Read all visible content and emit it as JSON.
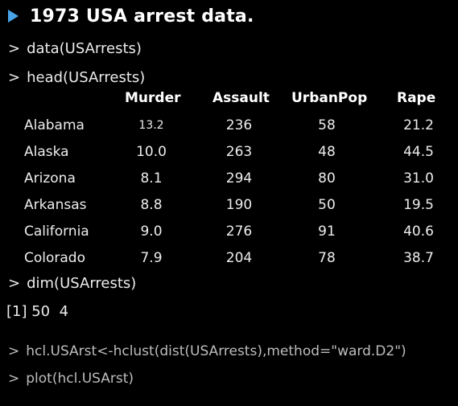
{
  "slide": {
    "title": "1973 USA arrest data.",
    "bullet_icon": "triangle-bullet-icon",
    "accent_color": "#4aa3e8"
  },
  "console": {
    "prompt": ">",
    "cmd1": "data(USArrests)",
    "cmd2": "head(USArrests)",
    "cmd3": "dim(USArrests)",
    "dim_output": "[1] 50  4",
    "cmd4": "hcl.USArst<-hclust(dist(USArrests),method=\"ward.D2\")",
    "cmd5": "plot(hcl.USArst)"
  },
  "table": {
    "columns": [
      "Murder",
      "Assault",
      "UrbanPop",
      "Rape"
    ],
    "rows": [
      {
        "state": "Alabama",
        "values": [
          "13.2",
          "236",
          "58",
          "21.2"
        ]
      },
      {
        "state": "Alaska",
        "values": [
          "10.0",
          "263",
          "48",
          "44.5"
        ]
      },
      {
        "state": "Arizona",
        "values": [
          "8.1",
          "294",
          "80",
          "31.0"
        ]
      },
      {
        "state": "Arkansas",
        "values": [
          "8.8",
          "190",
          "50",
          "19.5"
        ]
      },
      {
        "state": "California",
        "values": [
          "9.0",
          "276",
          "91",
          "40.6"
        ]
      },
      {
        "state": "Colorado",
        "values": [
          "7.9",
          "204",
          "78",
          "38.7"
        ]
      }
    ]
  }
}
